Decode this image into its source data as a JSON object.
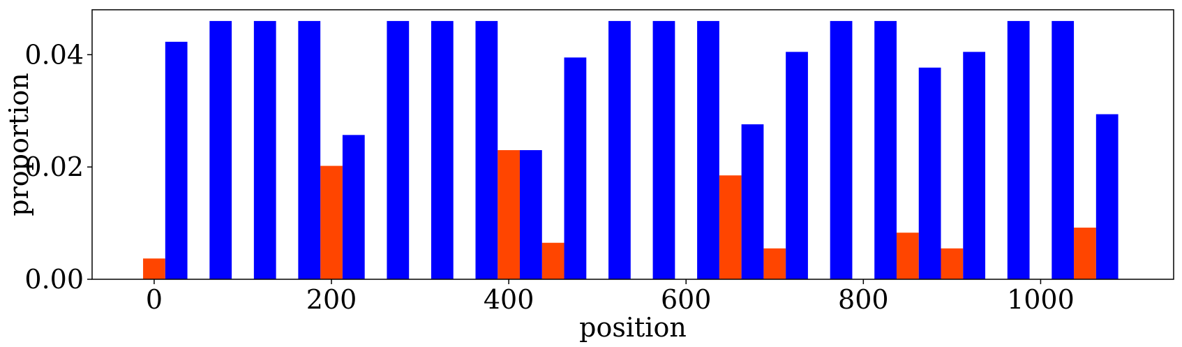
{
  "chart_data": {
    "type": "bar",
    "xlabel": "position",
    "ylabel": "proportion",
    "xlim": [
      -70,
      1150
    ],
    "ylim": [
      0,
      0.048
    ],
    "x_ticks": [
      0,
      200,
      400,
      600,
      800,
      1000
    ],
    "x_tick_labels": [
      "0",
      "200",
      "400",
      "600",
      "800",
      "1000"
    ],
    "y_ticks": [
      0,
      0.02,
      0.04
    ],
    "y_tick_labels": [
      "0.00",
      "0.02",
      "0.04"
    ],
    "bar_width": 25,
    "series": [
      {
        "color": "#ff4500",
        "bars": [
          {
            "x": 0,
            "value": 0.0037
          },
          {
            "x": 200,
            "value": 0.0202
          },
          {
            "x": 400,
            "value": 0.023
          },
          {
            "x": 450,
            "value": 0.0065
          },
          {
            "x": 650,
            "value": 0.0185
          },
          {
            "x": 700,
            "value": 0.0055
          },
          {
            "x": 850,
            "value": 0.0083
          },
          {
            "x": 900,
            "value": 0.0055
          },
          {
            "x": 1050,
            "value": 0.0092
          }
        ]
      },
      {
        "color": "#0000ff",
        "bars": [
          {
            "x": 25,
            "value": 0.0423
          },
          {
            "x": 75,
            "value": 0.046
          },
          {
            "x": 125,
            "value": 0.046
          },
          {
            "x": 175,
            "value": 0.046
          },
          {
            "x": 225,
            "value": 0.0257
          },
          {
            "x": 275,
            "value": 0.046
          },
          {
            "x": 325,
            "value": 0.046
          },
          {
            "x": 375,
            "value": 0.046
          },
          {
            "x": 425,
            "value": 0.023
          },
          {
            "x": 475,
            "value": 0.0395
          },
          {
            "x": 525,
            "value": 0.046
          },
          {
            "x": 575,
            "value": 0.046
          },
          {
            "x": 625,
            "value": 0.046
          },
          {
            "x": 675,
            "value": 0.0276
          },
          {
            "x": 725,
            "value": 0.0405
          },
          {
            "x": 775,
            "value": 0.046
          },
          {
            "x": 825,
            "value": 0.046
          },
          {
            "x": 875,
            "value": 0.0377
          },
          {
            "x": 925,
            "value": 0.0405
          },
          {
            "x": 975,
            "value": 0.046
          },
          {
            "x": 1025,
            "value": 0.046
          },
          {
            "x": 1075,
            "value": 0.0294
          }
        ]
      }
    ],
    "grid": false,
    "legend": "none"
  }
}
